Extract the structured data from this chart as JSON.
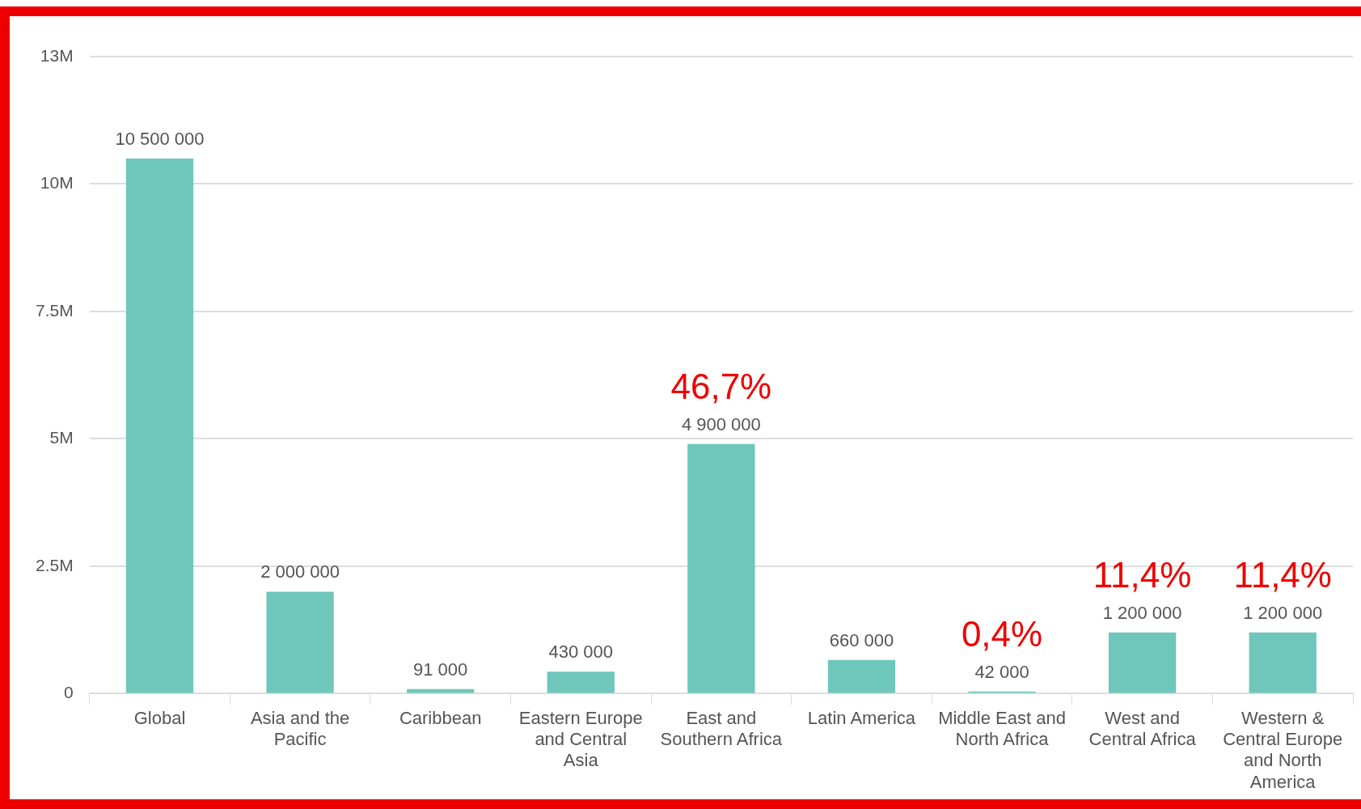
{
  "chart_data": {
    "type": "bar",
    "categories": [
      "Global",
      "Asia and the Pacific",
      "Caribbean",
      "Eastern Europe and Central Asia",
      "East and Southern Africa",
      "Latin America",
      "Middle East and North Africa",
      "West and Central Africa",
      "Western & Central Europe and North America"
    ],
    "values": [
      10500000,
      2000000,
      91000,
      430000,
      4900000,
      660000,
      42000,
      1200000,
      1200000
    ],
    "value_labels": [
      "10 500 000",
      "2 000 000",
      "91 000",
      "430 000",
      "4 900 000",
      "660 000",
      "42 000",
      "1 200 000",
      "1 200 000"
    ],
    "color": "#6fc7bb",
    "ylim": [
      0,
      12500000
    ],
    "yticks": [
      {
        "value": 0,
        "label": "0"
      },
      {
        "value": 2500000,
        "label": "2.5M"
      },
      {
        "value": 5000000,
        "label": "5M"
      },
      {
        "value": 7500000,
        "label": "7.5M"
      },
      {
        "value": 10000000,
        "label": "10M"
      },
      {
        "value": 12500000,
        "label": "13M"
      }
    ],
    "grid": "y",
    "legend": false,
    "annotations": [
      {
        "text": "46,7%",
        "x": "East and Southern Africa",
        "y": 4900000
      },
      {
        "text": "0,4%",
        "x": "Middle East and North Africa",
        "y": 42000
      },
      {
        "text": "11,4%",
        "x": "West and Central Africa",
        "y": 1200000
      },
      {
        "text": "11,4%",
        "x": "Western & Central Europe and North America",
        "y": 1200000
      }
    ]
  }
}
